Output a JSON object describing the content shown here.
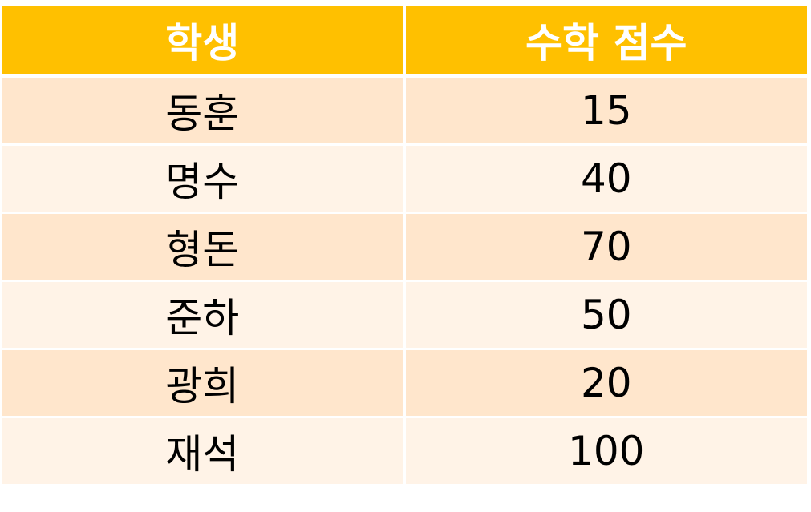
{
  "table": {
    "headers": [
      "학생",
      "수학 점수"
    ],
    "rows": [
      {
        "student": "동훈",
        "score": "15"
      },
      {
        "student": "명수",
        "score": "40"
      },
      {
        "student": "형돈",
        "score": "70"
      },
      {
        "student": "준하",
        "score": "50"
      },
      {
        "student": "광희",
        "score": "20"
      },
      {
        "student": "재석",
        "score": "100"
      }
    ],
    "colors": {
      "header_bg": "#ffc000",
      "header_text": "#ffffff",
      "row_odd_bg": "#ffe6cc",
      "row_even_bg": "#fff3e7",
      "cell_text": "#000000"
    }
  }
}
